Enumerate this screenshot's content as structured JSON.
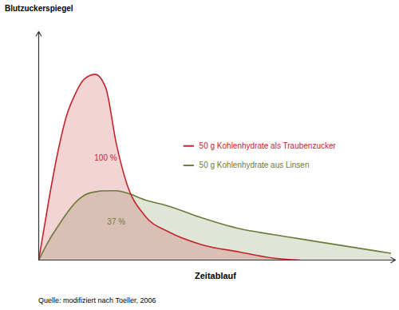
{
  "chart_data": {
    "type": "area",
    "x_label": "Zeitablauf",
    "y_label": "Blutzuckerspiegel",
    "caption": "Quelle: modifiziert nach Toeller, 2006",
    "x": [
      0,
      3,
      5,
      8,
      10,
      13,
      16,
      19,
      22,
      25,
      30,
      37,
      46,
      57,
      66,
      74,
      80,
      90,
      100
    ],
    "series": [
      {
        "name": "50 g Kohlenhydrate als Traubenzucker",
        "color": "#c0272d",
        "values": [
          0,
          28,
          45,
          65,
          73,
          81,
          83,
          77,
          52,
          34,
          20,
          12.5,
          7,
          3.6,
          1,
          0,
          null,
          null,
          null
        ]
      },
      {
        "name": "50 g Kohlenhydrate aus Linsen",
        "color": "#6b7b3a",
        "values": [
          0,
          9,
          14,
          21,
          25,
          29,
          30.5,
          31,
          31,
          30,
          27,
          24,
          19,
          14,
          11.5,
          9.5,
          8,
          5.5,
          3
        ]
      }
    ],
    "annotations": [
      "100 %",
      "37 %"
    ],
    "xlim": [
      0,
      100
    ],
    "ylim": [
      0,
      100
    ],
    "tick_labels": false,
    "grid": false,
    "legend": "right"
  }
}
